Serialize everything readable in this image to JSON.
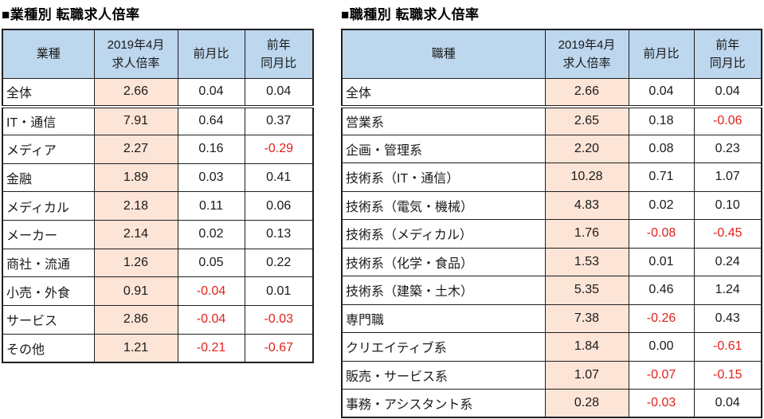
{
  "colors": {
    "page_bg": "#FFFFFF",
    "header_bg": "#BDD7EE",
    "ratio_bg": "#FCE4D6",
    "negative_text": "#E3211C",
    "text": "#1A1A1A",
    "border": "#1F1F1F"
  },
  "tables": [
    {
      "title": "■業種別 転職求人倍率",
      "col_headers": {
        "category": "業種",
        "ratio": "2019年4月\n求人倍率",
        "mom": "前月比",
        "yoy": "前年\n同月比"
      },
      "rows": [
        {
          "label": "全体",
          "ratio": "2.66",
          "mom": "0.04",
          "yoy": "0.04"
        },
        {
          "label": "IT・通信",
          "ratio": "7.91",
          "mom": "0.64",
          "yoy": "0.37"
        },
        {
          "label": "メディア",
          "ratio": "2.27",
          "mom": "0.16",
          "yoy": "-0.29"
        },
        {
          "label": "金融",
          "ratio": "1.89",
          "mom": "0.03",
          "yoy": "0.41"
        },
        {
          "label": "メディカル",
          "ratio": "2.18",
          "mom": "0.11",
          "yoy": "0.06"
        },
        {
          "label": "メーカー",
          "ratio": "2.14",
          "mom": "0.02",
          "yoy": "0.13"
        },
        {
          "label": "商社・流通",
          "ratio": "1.26",
          "mom": "0.05",
          "yoy": "0.22"
        },
        {
          "label": "小売・外食",
          "ratio": "0.91",
          "mom": "-0.04",
          "yoy": "0.01"
        },
        {
          "label": "サービス",
          "ratio": "2.86",
          "mom": "-0.04",
          "yoy": "-0.03"
        },
        {
          "label": "その他",
          "ratio": "1.21",
          "mom": "-0.21",
          "yoy": "-0.67"
        }
      ]
    },
    {
      "title": "■職種別 転職求人倍率",
      "col_headers": {
        "category": "職種",
        "ratio": "2019年4月\n求人倍率",
        "mom": "前月比",
        "yoy": "前年\n同月比"
      },
      "rows": [
        {
          "label": "全体",
          "ratio": "2.66",
          "mom": "0.04",
          "yoy": "0.04"
        },
        {
          "label": "営業系",
          "ratio": "2.65",
          "mom": "0.18",
          "yoy": "-0.06"
        },
        {
          "label": "企画・管理系",
          "ratio": "2.20",
          "mom": "0.08",
          "yoy": "0.23"
        },
        {
          "label": "技術系（IT・通信）",
          "ratio": "10.28",
          "mom": "0.71",
          "yoy": "1.07"
        },
        {
          "label": "技術系（電気・機械）",
          "ratio": "4.83",
          "mom": "0.02",
          "yoy": "0.10"
        },
        {
          "label": "技術系（メディカル）",
          "ratio": "1.76",
          "mom": "-0.08",
          "yoy": "-0.45"
        },
        {
          "label": "技術系（化学・食品）",
          "ratio": "1.53",
          "mom": "0.01",
          "yoy": "0.24"
        },
        {
          "label": "技術系（建築・土木）",
          "ratio": "5.35",
          "mom": "0.46",
          "yoy": "1.24"
        },
        {
          "label": "専門職",
          "ratio": "7.38",
          "mom": "-0.26",
          "yoy": "0.43"
        },
        {
          "label": "クリエイティブ系",
          "ratio": "1.84",
          "mom": "0.00",
          "yoy": "-0.61"
        },
        {
          "label": "販売・サービス系",
          "ratio": "1.07",
          "mom": "-0.07",
          "yoy": "-0.15"
        },
        {
          "label": "事務・アシスタント系",
          "ratio": "0.28",
          "mom": "-0.03",
          "yoy": "0.04"
        }
      ]
    }
  ]
}
